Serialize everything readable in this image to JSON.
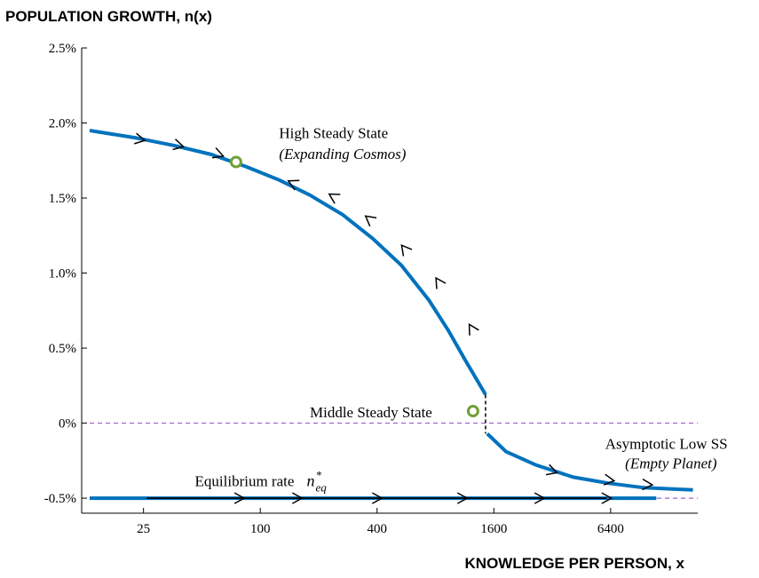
{
  "chart_data": {
    "type": "line",
    "title": "POPULATION GROWTH, n(x)",
    "xlabel": "KNOWLEDGE PER PERSON, x",
    "ylabel": "",
    "x_scale": "log",
    "xlim": [
      12,
      18000
    ],
    "ylim": [
      -0.6,
      2.5
    ],
    "x_ticks": [
      {
        "value": 25,
        "label": "25"
      },
      {
        "value": 100,
        "label": "100"
      },
      {
        "value": 400,
        "label": "400"
      },
      {
        "value": 1600,
        "label": "1600"
      },
      {
        "value": 6400,
        "label": "6400"
      }
    ],
    "y_ticks": [
      {
        "value": 2.5,
        "label": "2.5%"
      },
      {
        "value": 2.0,
        "label": "2.0%"
      },
      {
        "value": 1.5,
        "label": "1.5%"
      },
      {
        "value": 1.0,
        "label": "1.0%"
      },
      {
        "value": 0.5,
        "label": "0.5%"
      },
      {
        "value": 0.0,
        "label": "0%"
      },
      {
        "value": -0.5,
        "label": "-0.5%"
      }
    ],
    "grid": false,
    "series": [
      {
        "name": "",
        "color": "#0072BD",
        "points": [
          [
            13.2,
            1.95
          ],
          [
            23,
            1.9
          ],
          [
            36,
            1.85
          ],
          [
            56,
            1.79
          ],
          [
            84,
            1.71
          ],
          [
            125,
            1.62
          ],
          [
            180,
            1.52
          ],
          [
            265,
            1.39
          ],
          [
            380,
            1.23
          ],
          [
            535,
            1.05
          ],
          [
            740,
            0.82
          ],
          [
            930,
            0.62
          ],
          [
            1140,
            0.42
          ],
          [
            1450,
            0.19
          ]
        ],
        "arrows": [
          {
            "x": 24,
            "y": 1.89,
            "dir": "right"
          },
          {
            "x": 38,
            "y": 1.85,
            "dir": "right"
          },
          {
            "x": 61,
            "y": 1.79,
            "dir": "right"
          },
          {
            "x": 147,
            "y": 1.6,
            "dir": "left"
          },
          {
            "x": 238,
            "y": 1.51,
            "dir": "left"
          },
          {
            "x": 365,
            "y": 1.36,
            "dir": "left"
          },
          {
            "x": 555,
            "y": 1.16,
            "dir": "left"
          },
          {
            "x": 830,
            "y": 0.94,
            "dir": "left"
          },
          {
            "x": 1230,
            "y": 0.63,
            "dir": "left"
          }
        ]
      },
      {
        "name": "",
        "color": "#0072BD",
        "points": [
          [
            1480,
            -0.07
          ],
          [
            1850,
            -0.19
          ],
          [
            2650,
            -0.28
          ],
          [
            4100,
            -0.36
          ],
          [
            6200,
            -0.4
          ],
          [
            9500,
            -0.43
          ],
          [
            17000,
            -0.445
          ]
        ],
        "arrows": [
          {
            "x": 3200,
            "y": -0.32,
            "dir": "right"
          },
          {
            "x": 6300,
            "y": -0.38,
            "dir": "right"
          },
          {
            "x": 9900,
            "y": -0.41,
            "dir": "right"
          }
        ]
      },
      {
        "name": "",
        "color": "#0072BD",
        "points": [
          [
            13.2,
            -0.5
          ],
          [
            11000,
            -0.5
          ]
        ],
        "arrows": [
          {
            "x": 78,
            "y": -0.5,
            "dir": "right"
          },
          {
            "x": 155,
            "y": -0.5,
            "dir": "right"
          },
          {
            "x": 400,
            "y": -0.5,
            "dir": "right"
          },
          {
            "x": 1100,
            "y": -0.5,
            "dir": "right"
          },
          {
            "x": 2750,
            "y": -0.5,
            "dir": "right"
          },
          {
            "x": 6100,
            "y": -0.5,
            "dir": "right"
          }
        ]
      }
    ],
    "reference_lines": [
      {
        "y": 0,
        "style": "dashed",
        "color": "#9B59D0"
      },
      {
        "y": -0.5,
        "style": "dashed",
        "color": "#9B59D0"
      }
    ],
    "vertical_dashed": {
      "x": 1450,
      "y_from": -0.07,
      "y_to": 0.19,
      "color": "#000000"
    },
    "steady_states": [
      {
        "x": 75,
        "y": 1.74,
        "color": "#6FA035"
      },
      {
        "x": 1250,
        "y": 0.08,
        "color": "#6FA035"
      }
    ],
    "annotations": [
      {
        "text": "High Steady State",
        "x": 125,
        "y": 1.9,
        "style": "normal"
      },
      {
        "text": "(Expanding Cosmos)",
        "x": 125,
        "y": 1.76,
        "style": "italic"
      },
      {
        "text": "Middle Steady State",
        "x": 180,
        "y": 0.04,
        "style": "normal"
      },
      {
        "text": "Asymptotic Low SS",
        "x": 6000,
        "y": -0.17,
        "style": "normal"
      },
      {
        "text": "(Empty Planet)",
        "x": 7600,
        "y": -0.3,
        "style": "italic"
      },
      {
        "text": "Equilibrium rate",
        "x": 46,
        "y": -0.42,
        "style": "normal"
      }
    ],
    "equilibrium_symbol": {
      "base": "n",
      "sub": "eq",
      "sup": "*"
    }
  }
}
